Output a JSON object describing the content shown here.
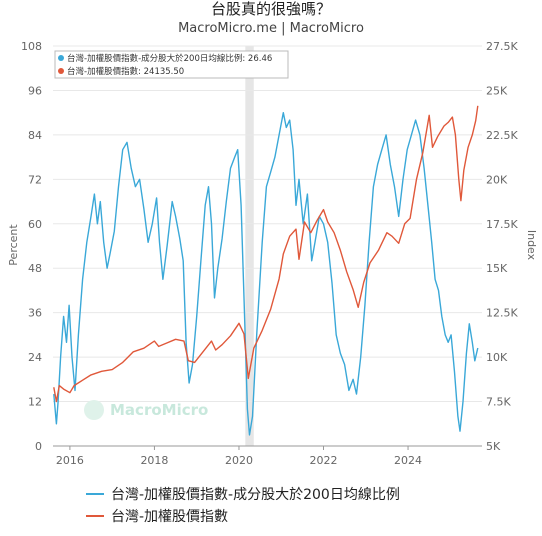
{
  "chart_data": {
    "type": "line",
    "title": "台股真的很強嗎？",
    "subtitle": "MacroMicro.me | MacroMicro",
    "watermark": "MacroMicro",
    "ylabel_left": "Percent",
    "ylabel_right": "Index",
    "ylim_left": [
      0,
      108
    ],
    "ylim_right": [
      5000,
      27500
    ],
    "yticks_left": [
      "0",
      "12",
      "24",
      "36",
      "48",
      "60",
      "72",
      "84",
      "96",
      "108"
    ],
    "yticks_right": [
      "5K",
      "7.5K",
      "10K",
      "12.5K",
      "15K",
      "17.5K",
      "20K",
      "22.5K",
      "25K",
      "27.5K"
    ],
    "xlim": [
      2015.6,
      2025.75
    ],
    "xticks": [
      "2016",
      "2018",
      "2020",
      "2022",
      "2024"
    ],
    "shaded_region": [
      2020.15,
      2020.35
    ],
    "legend_top": [
      "台灣-加權股價指數-成分股大於200日均線比例: 26.46",
      "台灣-加權股價指數: 24135.50"
    ],
    "series": [
      {
        "name": "台灣-加權股價指數-成分股大於200日均線比例",
        "axis": "left",
        "color": "#3aa8d8",
        "points": [
          [
            2015.62,
            14
          ],
          [
            2015.68,
            6
          ],
          [
            2015.72,
            12
          ],
          [
            2015.78,
            24
          ],
          [
            2015.85,
            35
          ],
          [
            2015.92,
            28
          ],
          [
            2015.98,
            38
          ],
          [
            2016.05,
            24
          ],
          [
            2016.12,
            15
          ],
          [
            2016.2,
            30
          ],
          [
            2016.3,
            45
          ],
          [
            2016.4,
            55
          ],
          [
            2016.5,
            62
          ],
          [
            2016.58,
            68
          ],
          [
            2016.65,
            60
          ],
          [
            2016.72,
            66
          ],
          [
            2016.8,
            55
          ],
          [
            2016.88,
            48
          ],
          [
            2016.95,
            52
          ],
          [
            2017.05,
            58
          ],
          [
            2017.15,
            70
          ],
          [
            2017.25,
            80
          ],
          [
            2017.35,
            82
          ],
          [
            2017.45,
            75
          ],
          [
            2017.55,
            70
          ],
          [
            2017.65,
            72
          ],
          [
            2017.75,
            64
          ],
          [
            2017.85,
            55
          ],
          [
            2017.95,
            60
          ],
          [
            2018.05,
            67
          ],
          [
            2018.12,
            55
          ],
          [
            2018.2,
            45
          ],
          [
            2018.3,
            54
          ],
          [
            2018.42,
            66
          ],
          [
            2018.5,
            62
          ],
          [
            2018.6,
            56
          ],
          [
            2018.68,
            50
          ],
          [
            2018.75,
            28
          ],
          [
            2018.82,
            17
          ],
          [
            2018.9,
            22
          ],
          [
            2019.0,
            35
          ],
          [
            2019.1,
            50
          ],
          [
            2019.2,
            65
          ],
          [
            2019.28,
            70
          ],
          [
            2019.35,
            60
          ],
          [
            2019.42,
            40
          ],
          [
            2019.5,
            48
          ],
          [
            2019.6,
            56
          ],
          [
            2019.7,
            66
          ],
          [
            2019.8,
            75
          ],
          [
            2019.9,
            78
          ],
          [
            2019.97,
            80
          ],
          [
            2020.05,
            65
          ],
          [
            2020.12,
            40
          ],
          [
            2020.2,
            10
          ],
          [
            2020.25,
            3
          ],
          [
            2020.32,
            8
          ],
          [
            2020.42,
            30
          ],
          [
            2020.55,
            55
          ],
          [
            2020.65,
            70
          ],
          [
            2020.75,
            74
          ],
          [
            2020.85,
            78
          ],
          [
            2020.95,
            84
          ],
          [
            2021.05,
            90
          ],
          [
            2021.12,
            86
          ],
          [
            2021.2,
            88
          ],
          [
            2021.28,
            80
          ],
          [
            2021.35,
            65
          ],
          [
            2021.42,
            72
          ],
          [
            2021.52,
            60
          ],
          [
            2021.62,
            68
          ],
          [
            2021.72,
            50
          ],
          [
            2021.8,
            55
          ],
          [
            2021.9,
            62
          ],
          [
            2022.0,
            60
          ],
          [
            2022.1,
            55
          ],
          [
            2022.2,
            44
          ],
          [
            2022.3,
            30
          ],
          [
            2022.4,
            25
          ],
          [
            2022.5,
            22
          ],
          [
            2022.6,
            15
          ],
          [
            2022.7,
            18
          ],
          [
            2022.78,
            14
          ],
          [
            2022.88,
            24
          ],
          [
            2022.98,
            38
          ],
          [
            2023.08,
            55
          ],
          [
            2023.18,
            70
          ],
          [
            2023.28,
            76
          ],
          [
            2023.38,
            80
          ],
          [
            2023.48,
            84
          ],
          [
            2023.58,
            76
          ],
          [
            2023.68,
            70
          ],
          [
            2023.78,
            62
          ],
          [
            2023.88,
            72
          ],
          [
            2023.98,
            80
          ],
          [
            2024.08,
            84
          ],
          [
            2024.18,
            88
          ],
          [
            2024.28,
            84
          ],
          [
            2024.38,
            75
          ],
          [
            2024.48,
            64
          ],
          [
            2024.56,
            55
          ],
          [
            2024.64,
            45
          ],
          [
            2024.72,
            42
          ],
          [
            2024.8,
            35
          ],
          [
            2024.88,
            30
          ],
          [
            2024.95,
            28
          ],
          [
            2025.02,
            30
          ],
          [
            2025.1,
            20
          ],
          [
            2025.18,
            8
          ],
          [
            2025.23,
            4
          ],
          [
            2025.3,
            12
          ],
          [
            2025.38,
            25
          ],
          [
            2025.45,
            33
          ],
          [
            2025.52,
            28
          ],
          [
            2025.58,
            23
          ],
          [
            2025.65,
            26.46
          ]
        ]
      },
      {
        "name": "台灣-加權股價指數",
        "axis": "right",
        "color": "#e0583a",
        "points": [
          [
            2015.62,
            8300
          ],
          [
            2015.68,
            7500
          ],
          [
            2015.75,
            8400
          ],
          [
            2015.85,
            8200
          ],
          [
            2016.0,
            8000
          ],
          [
            2016.1,
            8400
          ],
          [
            2016.3,
            8700
          ],
          [
            2016.5,
            9000
          ],
          [
            2016.75,
            9200
          ],
          [
            2017.0,
            9300
          ],
          [
            2017.25,
            9700
          ],
          [
            2017.5,
            10300
          ],
          [
            2017.75,
            10500
          ],
          [
            2018.0,
            10900
          ],
          [
            2018.1,
            10600
          ],
          [
            2018.3,
            10800
          ],
          [
            2018.5,
            11000
          ],
          [
            2018.7,
            10900
          ],
          [
            2018.8,
            9800
          ],
          [
            2018.95,
            9700
          ],
          [
            2019.15,
            10300
          ],
          [
            2019.35,
            10900
          ],
          [
            2019.45,
            10400
          ],
          [
            2019.6,
            10700
          ],
          [
            2019.8,
            11200
          ],
          [
            2020.0,
            11900
          ],
          [
            2020.12,
            11300
          ],
          [
            2020.22,
            8800
          ],
          [
            2020.35,
            10500
          ],
          [
            2020.55,
            11500
          ],
          [
            2020.75,
            12700
          ],
          [
            2020.95,
            14400
          ],
          [
            2021.05,
            15800
          ],
          [
            2021.2,
            16800
          ],
          [
            2021.35,
            17200
          ],
          [
            2021.42,
            15500
          ],
          [
            2021.55,
            17600
          ],
          [
            2021.7,
            17000
          ],
          [
            2021.85,
            17700
          ],
          [
            2022.0,
            18300
          ],
          [
            2022.1,
            17600
          ],
          [
            2022.25,
            17000
          ],
          [
            2022.4,
            16000
          ],
          [
            2022.55,
            14800
          ],
          [
            2022.7,
            13800
          ],
          [
            2022.82,
            12800
          ],
          [
            2022.95,
            14200
          ],
          [
            2023.1,
            15300
          ],
          [
            2023.3,
            16000
          ],
          [
            2023.5,
            17000
          ],
          [
            2023.62,
            16800
          ],
          [
            2023.78,
            16400
          ],
          [
            2023.92,
            17500
          ],
          [
            2024.05,
            17800
          ],
          [
            2024.2,
            20000
          ],
          [
            2024.35,
            21500
          ],
          [
            2024.5,
            23600
          ],
          [
            2024.58,
            21800
          ],
          [
            2024.7,
            22400
          ],
          [
            2024.85,
            23000
          ],
          [
            2024.95,
            23200
          ],
          [
            2025.05,
            23500
          ],
          [
            2025.12,
            22500
          ],
          [
            2025.2,
            20000
          ],
          [
            2025.25,
            18800
          ],
          [
            2025.32,
            20500
          ],
          [
            2025.42,
            21800
          ],
          [
            2025.52,
            22500
          ],
          [
            2025.6,
            23300
          ],
          [
            2025.65,
            24135.5
          ]
        ]
      }
    ]
  }
}
